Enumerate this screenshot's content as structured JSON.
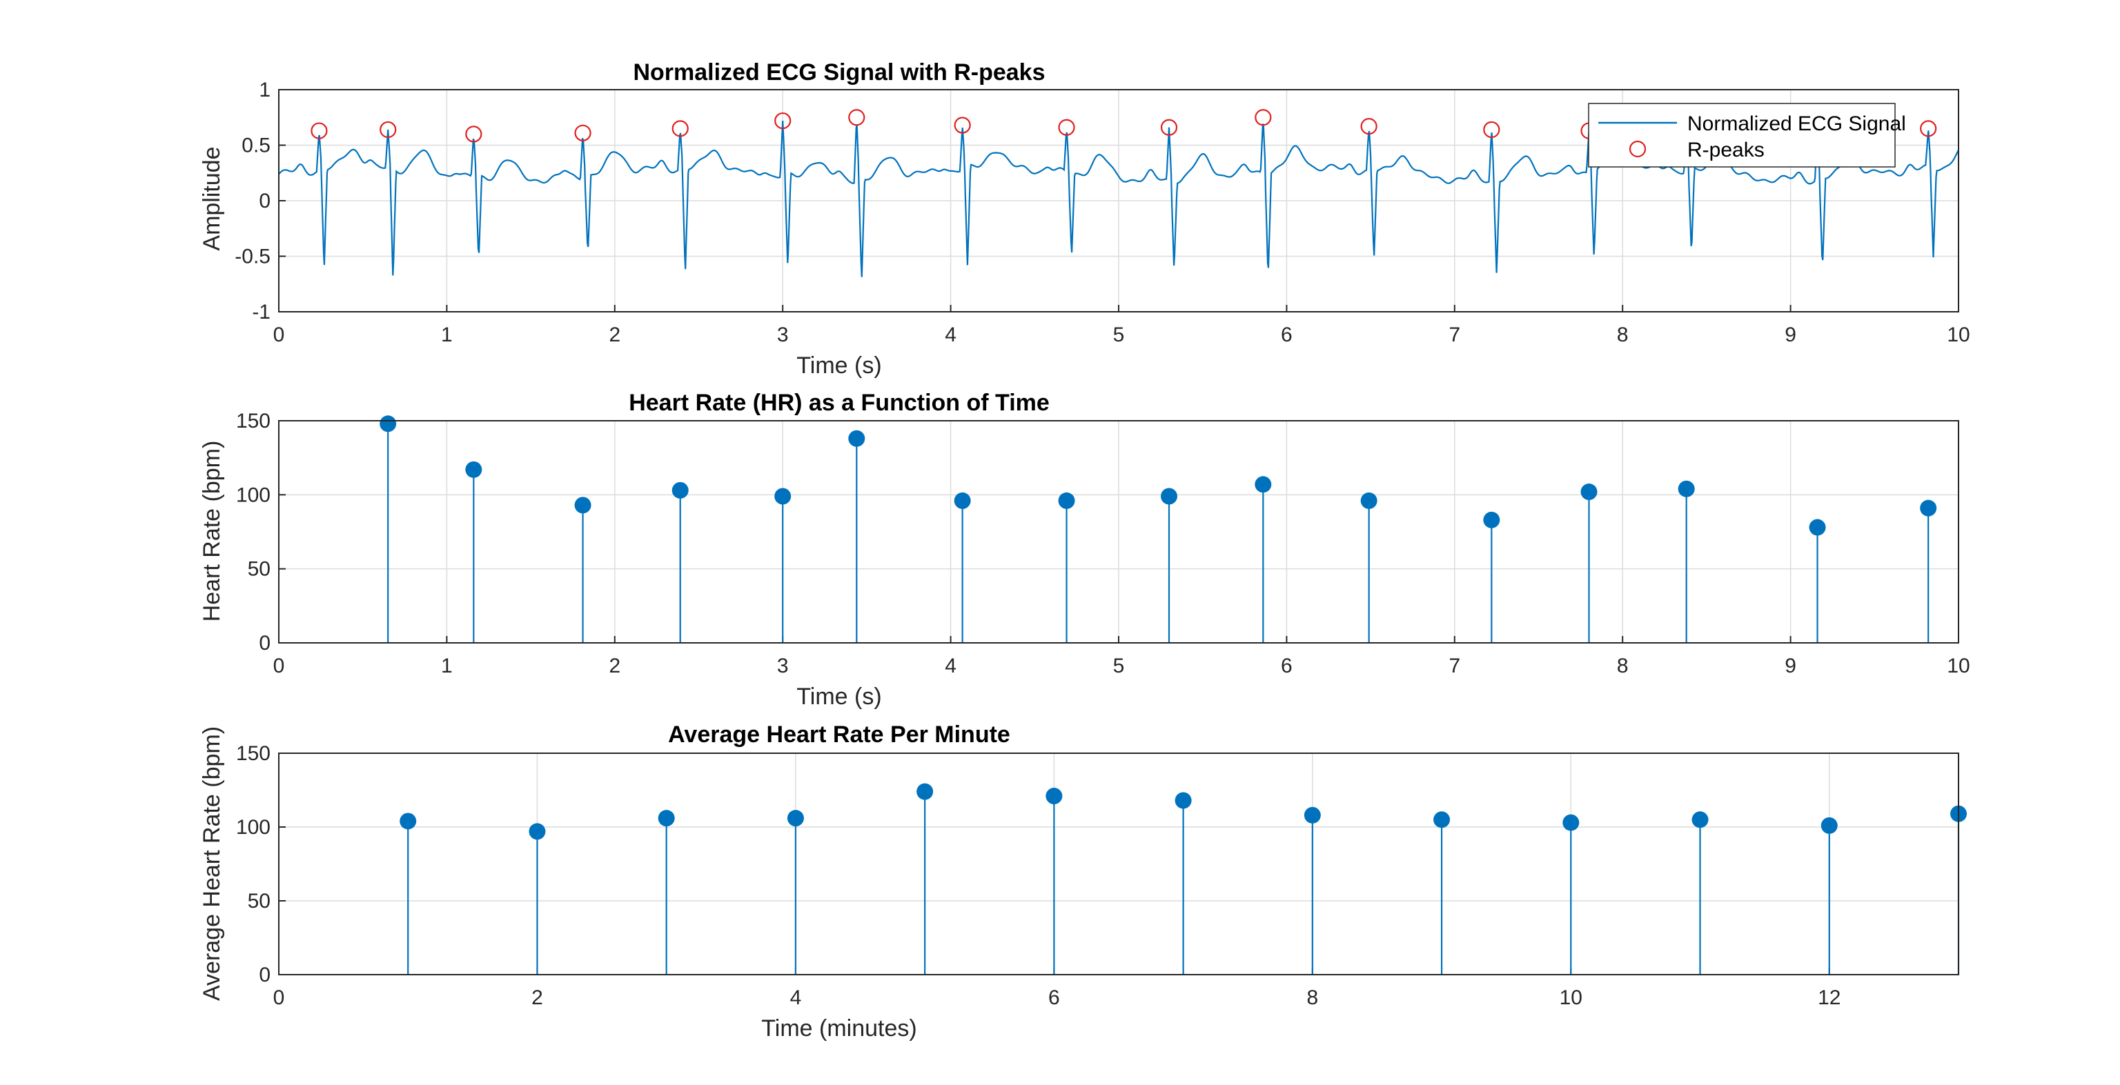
{
  "chart_data": [
    {
      "type": "line",
      "title": "Normalized ECG Signal with R-peaks",
      "xlabel": "Time (s)",
      "ylabel": "Amplitude",
      "xlim": [
        0,
        10
      ],
      "ylim": [
        -1,
        1
      ],
      "xticks": [
        0,
        1,
        2,
        3,
        4,
        5,
        6,
        7,
        8,
        9,
        10
      ],
      "yticks": [
        -1,
        -0.5,
        0,
        0.5,
        1
      ],
      "ytick_labels": [
        "-1",
        "-0.5",
        "0",
        "0.5",
        "1"
      ],
      "grid": true,
      "legend_position": "top-right",
      "colors": {
        "signal": "#0072BD",
        "peaks": "#E02020"
      },
      "series": [
        {
          "name": "Normalized ECG Signal",
          "style": "line"
        },
        {
          "name": "R-peaks",
          "style": "open-circle-markers"
        }
      ],
      "r_peaks": {
        "x": [
          0.24,
          0.65,
          1.16,
          1.81,
          2.39,
          3.0,
          3.44,
          4.07,
          4.69,
          5.3,
          5.86,
          6.49,
          7.22,
          7.8,
          8.38,
          9.16,
          9.82
        ],
        "y": [
          0.63,
          0.64,
          0.6,
          0.61,
          0.65,
          0.72,
          0.75,
          0.68,
          0.66,
          0.66,
          0.75,
          0.67,
          0.64,
          0.63,
          0.63,
          0.62,
          0.65
        ]
      },
      "s_waves": {
        "x": [
          0.27,
          0.68,
          1.19,
          1.84,
          2.42,
          3.03,
          3.47,
          4.1,
          4.72,
          5.33,
          5.89,
          6.52,
          7.25,
          7.83,
          8.41,
          9.19,
          9.85
        ],
        "y": [
          -0.62,
          -0.72,
          -0.54,
          -0.48,
          -0.66,
          -0.6,
          -0.73,
          -0.58,
          -0.5,
          -0.62,
          -0.69,
          -0.53,
          -0.65,
          -0.52,
          -0.48,
          -0.61,
          -0.51
        ]
      }
    },
    {
      "type": "stem",
      "title": "Heart Rate (HR) as a Function of Time",
      "xlabel": "Time (s)",
      "ylabel": "Heart Rate (bpm)",
      "xlim": [
        0,
        10
      ],
      "ylim": [
        0,
        150
      ],
      "xticks": [
        0,
        1,
        2,
        3,
        4,
        5,
        6,
        7,
        8,
        9,
        10
      ],
      "yticks": [
        0,
        50,
        100,
        150
      ],
      "grid": true,
      "color": "#0072BD",
      "x": [
        0.65,
        1.16,
        1.81,
        2.39,
        3.0,
        3.44,
        4.07,
        4.69,
        5.3,
        5.86,
        6.49,
        7.22,
        7.8,
        8.38,
        9.16,
        9.82
      ],
      "values": [
        148,
        117,
        93,
        103,
        99,
        138,
        96,
        96,
        99,
        107,
        96,
        83,
        102,
        104,
        78,
        91
      ]
    },
    {
      "type": "stem",
      "title": "Average Heart Rate Per Minute",
      "xlabel": "Time (minutes)",
      "ylabel": "Average Heart Rate (bpm)",
      "xlim": [
        0,
        13
      ],
      "ylim": [
        0,
        150
      ],
      "xticks": [
        0,
        2,
        4,
        6,
        8,
        10,
        12
      ],
      "yticks": [
        0,
        50,
        100,
        150
      ],
      "grid": true,
      "color": "#0072BD",
      "x": [
        1,
        2,
        3,
        4,
        5,
        6,
        7,
        8,
        9,
        10,
        11,
        12,
        13
      ],
      "values": [
        104,
        97,
        106,
        106,
        124,
        121,
        118,
        108,
        105,
        103,
        105,
        101,
        109
      ]
    }
  ]
}
